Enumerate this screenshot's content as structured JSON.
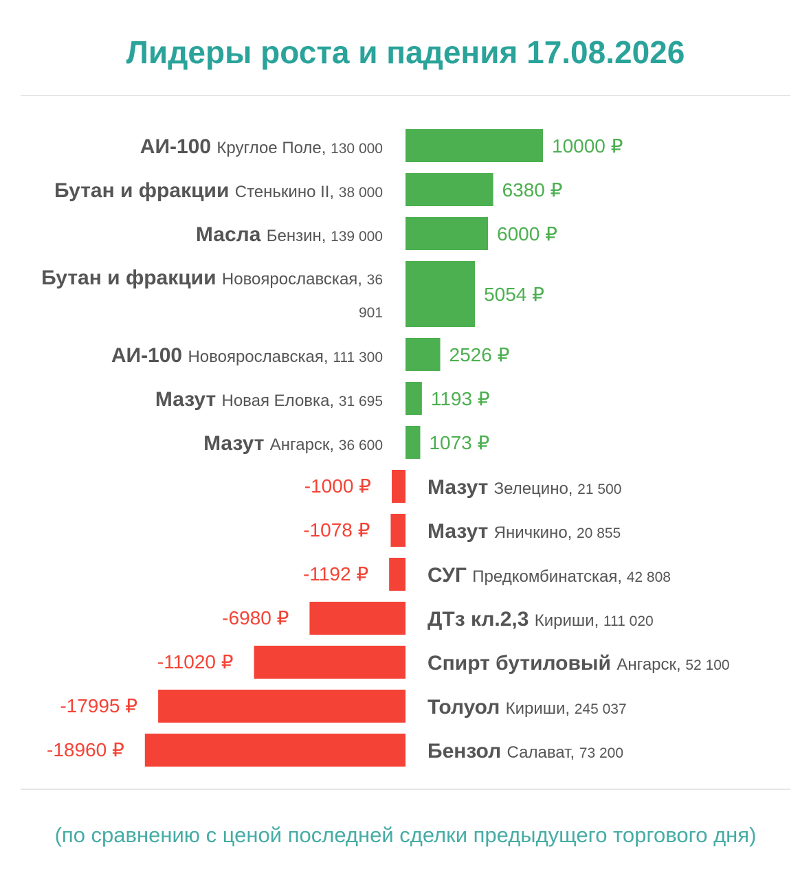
{
  "chart_data": {
    "type": "bar",
    "orientation": "horizontal",
    "title": "Лидеры роста и падения 17.08.2026",
    "footnote": "(по сравнению с ценой последней сделки предыдущего торгового дня)",
    "currency": "₽",
    "colors": {
      "title": "#2aa39a",
      "positive": "#4caf50",
      "negative": "#f44336",
      "label": "#555555"
    },
    "categories": [
      {
        "product": "АИ-100",
        "place": "Круглое Поле",
        "volume": "130 000"
      },
      {
        "product": "Бутан и фракции",
        "place": "Стенькино II",
        "volume": "38 000"
      },
      {
        "product": "Масла",
        "place": "Бензин",
        "volume": "139 000"
      },
      {
        "product": "Бутан и фракции",
        "place": "Новоярославская",
        "volume": "36 901"
      },
      {
        "product": "АИ-100",
        "place": "Новоярославская",
        "volume": "111 300"
      },
      {
        "product": "Мазут",
        "place": "Новая Еловка",
        "volume": "31 695"
      },
      {
        "product": "Мазут",
        "place": "Ангарск",
        "volume": "36 600"
      },
      {
        "product": "Мазут",
        "place": "Зелецино",
        "volume": "21 500"
      },
      {
        "product": "Мазут",
        "place": "Яничкино",
        "volume": "20 855"
      },
      {
        "product": "СУГ",
        "place": "Предкомбинатская",
        "volume": "42 808"
      },
      {
        "product": "ДТз кл.2,3",
        "place": "Кириши",
        "volume": "111 020"
      },
      {
        "product": "Спирт бутиловый",
        "place": "Ангарск",
        "volume": "52 100"
      },
      {
        "product": "Толуол",
        "place": "Кириши",
        "volume": "245 037"
      },
      {
        "product": "Бензол",
        "place": "Салават",
        "volume": "73 200"
      }
    ],
    "values": [
      10000,
      6380,
      6000,
      5054,
      2526,
      1193,
      1073,
      -1000,
      -1078,
      -1192,
      -6980,
      -11020,
      -17995,
      -18960
    ]
  }
}
